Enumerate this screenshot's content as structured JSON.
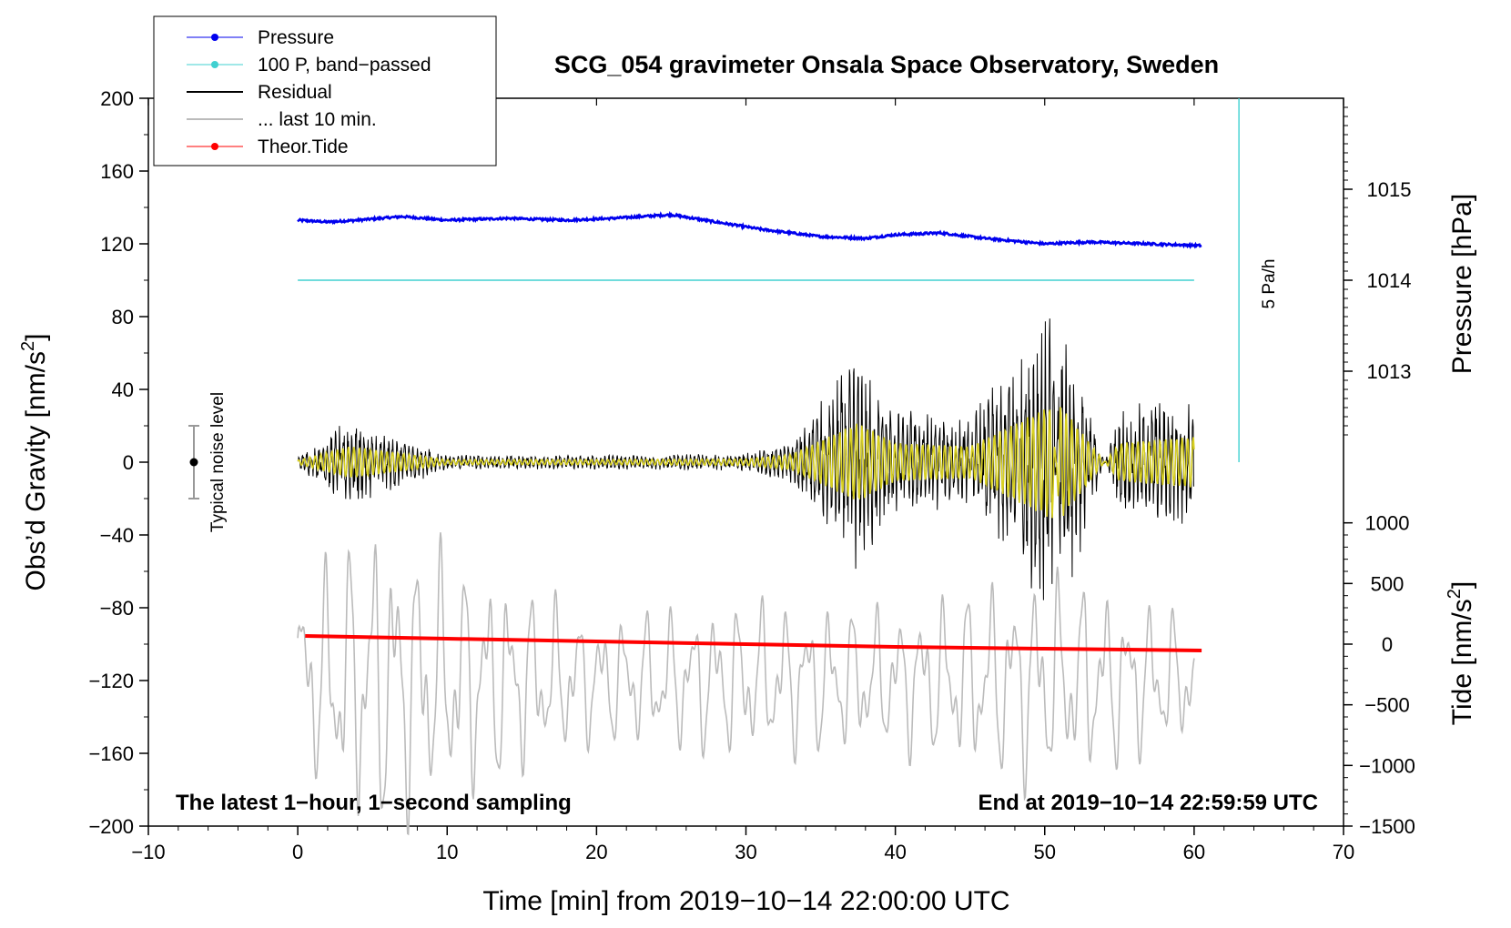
{
  "chart_data": {
    "type": "line",
    "title": "SCG_054 gravimeter Onsala Space Observatory, Sweden",
    "xlabel": "Time [min] from 2019−10−14 22:00:00 UTC",
    "ylabel_left": "Obs’d Gravity [nm/s",
    "ylabel_left_sup": "2",
    "ylabel_left_close": "]",
    "ylabel_right_top": "Pressure [hPa]",
    "ylabel_right_bottom": "Tide [nm/s",
    "ylabel_right_bottom_sup": "2",
    "ylabel_right_bottom_close": "]",
    "xlim": [
      -10,
      70
    ],
    "ylim": [
      -200,
      200
    ],
    "x_ticks": [
      "−10",
      "0",
      "10",
      "20",
      "30",
      "40",
      "50",
      "60",
      "70"
    ],
    "x_tick_values": [
      -10,
      0,
      10,
      20,
      30,
      40,
      50,
      60,
      70
    ],
    "y_ticks": [
      "200",
      "160",
      "120",
      "80",
      "40",
      "0",
      "−40",
      "−80",
      "−120",
      "−160",
      "−200"
    ],
    "y_tick_values": [
      200,
      160,
      120,
      80,
      40,
      0,
      -40,
      -80,
      -120,
      -160,
      -200
    ],
    "pressure_axis": {
      "ticks": [
        "1015",
        "1014",
        "1013"
      ],
      "tick_values": [
        1015,
        1014,
        1013
      ],
      "gravity_at_1014": 100,
      "gravity_per_hpa": 50
    },
    "tide_axis": {
      "ticks": [
        "1000",
        "500",
        "0",
        "−500",
        "−1000",
        "−1500"
      ],
      "tick_values": [
        1000,
        500,
        0,
        -500,
        -1000,
        -1500
      ],
      "gravity_at_zero": -100,
      "gravity_per_500": 33.33
    },
    "legend": [
      {
        "label": "Pressure",
        "color": "#0000ee",
        "marker": true
      },
      {
        "label": "100 P, band−passed",
        "color": "#40d0d0",
        "marker": true
      },
      {
        "label": "Residual",
        "color": "#000000",
        "marker": false
      },
      {
        "label": "... last 10 min.",
        "color": "#bbbbbb",
        "marker": false
      },
      {
        "label": "Theor.Tide",
        "color": "#ff0000",
        "marker": true
      }
    ],
    "series": [
      {
        "name": "Pressure",
        "color": "#0000ee",
        "x": [
          0,
          2,
          4,
          7,
          10,
          14,
          18,
          21,
          25,
          28,
          31,
          35,
          38,
          40,
          43,
          46,
          50,
          53,
          57,
          60.5
        ],
        "y": [
          133,
          132,
          133,
          135,
          133,
          134,
          133,
          134,
          136,
          132,
          128,
          124,
          123,
          125,
          126,
          123,
          120,
          121,
          120,
          119
        ]
      },
      {
        "name": "100 P, band−passed",
        "color": "#40d0d0",
        "x": [
          0,
          60
        ],
        "y": [
          100,
          100
        ]
      },
      {
        "name": "Residual",
        "color": "#000000",
        "x": [
          0,
          3.5,
          10,
          20,
          30,
          33,
          37.5,
          40,
          45,
          50.5,
          51,
          55,
          60
        ],
        "envelope": [
          3,
          25,
          4,
          4,
          5,
          12,
          62,
          30,
          25,
          90,
          -92,
          30,
          40
        ]
      },
      {
        "name": "... last 10 min.",
        "color": "#bbbbbb",
        "x": [
          0,
          5,
          10,
          20,
          30,
          40,
          50,
          60
        ],
        "envelope": [
          60,
          100,
          80,
          40,
          50,
          45,
          70,
          40
        ]
      },
      {
        "name": "Theor.Tide",
        "color": "#ff0000",
        "x": [
          0.5,
          10,
          20,
          30,
          40,
          50,
          60.5
        ],
        "y": [
          -95.5,
          -97,
          -98.5,
          -100,
          -101.5,
          -102.5,
          -103.5
        ]
      }
    ],
    "noise_level": {
      "label": "Typical noise level",
      "center": 0,
      "range": [
        -20,
        20
      ]
    },
    "rate_marker": {
      "label": "5 Pa/h",
      "x": 63,
      "y_range": [
        0,
        200
      ]
    },
    "annotation_left": "The latest 1−hour, 1−second sampling",
    "annotation_right": "End at 2019−10−14 22:59:59 UTC"
  }
}
